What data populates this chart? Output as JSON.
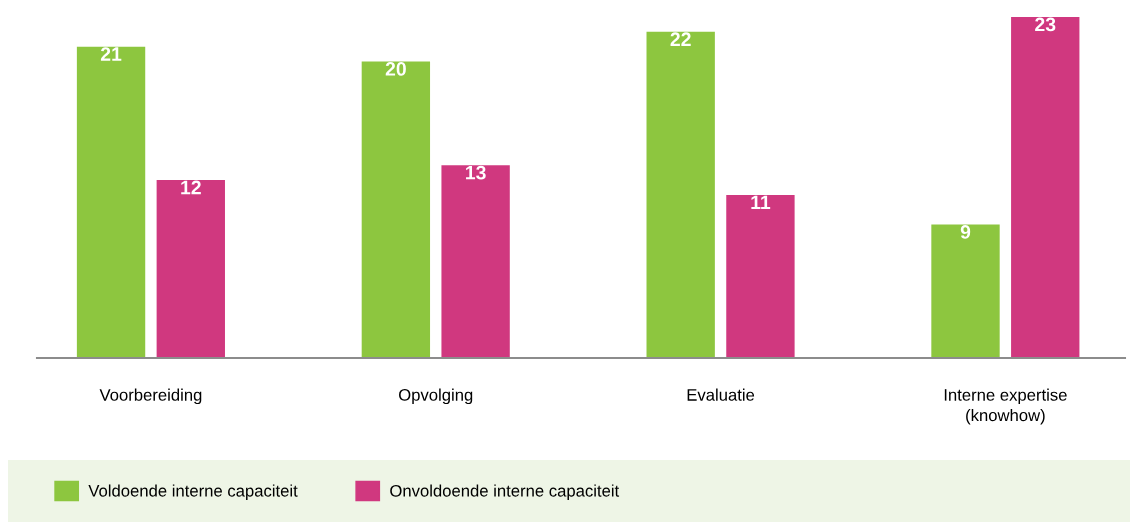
{
  "chart_data": {
    "type": "bar",
    "categories": [
      "Voorbereiding",
      "Opvolging",
      "Evaluatie",
      "Interne expertise\n(knowhow)"
    ],
    "series": [
      {
        "name": "Voldoende interne capaciteit",
        "color": "#8dc63f",
        "values": [
          21,
          20,
          22,
          9
        ]
      },
      {
        "name": "Onvoldoende interne capaciteit",
        "color": "#d0387f",
        "values": [
          12,
          13,
          11,
          23
        ]
      }
    ],
    "data_labels": true,
    "grid": false,
    "legend": "bottom"
  }
}
